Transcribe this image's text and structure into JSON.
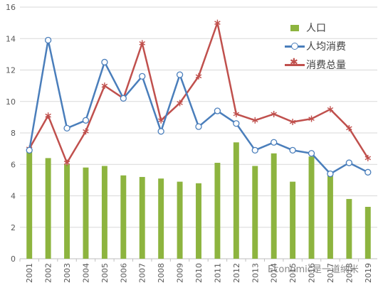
{
  "chart_data": {
    "type": "bar+line",
    "categories": [
      "2001",
      "2002",
      "2003",
      "2004",
      "2005",
      "2006",
      "2007",
      "2008",
      "2009",
      "2010",
      "2011",
      "2012",
      "2013",
      "2014",
      "2015",
      "2016",
      "2017",
      "2018",
      "2019"
    ],
    "ylim": [
      0,
      16
    ],
    "yticks": [
      0,
      2,
      4,
      6,
      8,
      10,
      12,
      14,
      16
    ],
    "grid": true,
    "legend_position": "top-right",
    "series": [
      {
        "name": "人口",
        "type": "bar",
        "color": "#8db43f",
        "values": [
          6.9,
          6.4,
          6.0,
          5.8,
          5.9,
          5.3,
          5.2,
          5.1,
          4.9,
          4.8,
          6.1,
          7.4,
          5.9,
          6.7,
          4.9,
          6.5,
          5.4,
          3.8,
          3.3
        ]
      },
      {
        "name": "人均消费",
        "type": "line",
        "color": "#4a7ebb",
        "marker": "circle",
        "values": [
          6.9,
          13.9,
          8.3,
          8.8,
          12.5,
          10.2,
          11.6,
          8.1,
          11.7,
          8.4,
          9.4,
          8.6,
          6.9,
          7.4,
          6.9,
          6.7,
          5.4,
          6.1,
          5.5
        ]
      },
      {
        "name": "消费总量",
        "type": "line",
        "color": "#c0504d",
        "marker": "star",
        "values": [
          7.0,
          9.1,
          6.1,
          8.1,
          11.0,
          10.2,
          13.7,
          8.8,
          9.9,
          11.6,
          15.0,
          9.2,
          8.8,
          9.2,
          8.7,
          8.9,
          9.5,
          8.3,
          6.4
        ]
      }
    ]
  },
  "watermark": "Economic是一道纳米"
}
